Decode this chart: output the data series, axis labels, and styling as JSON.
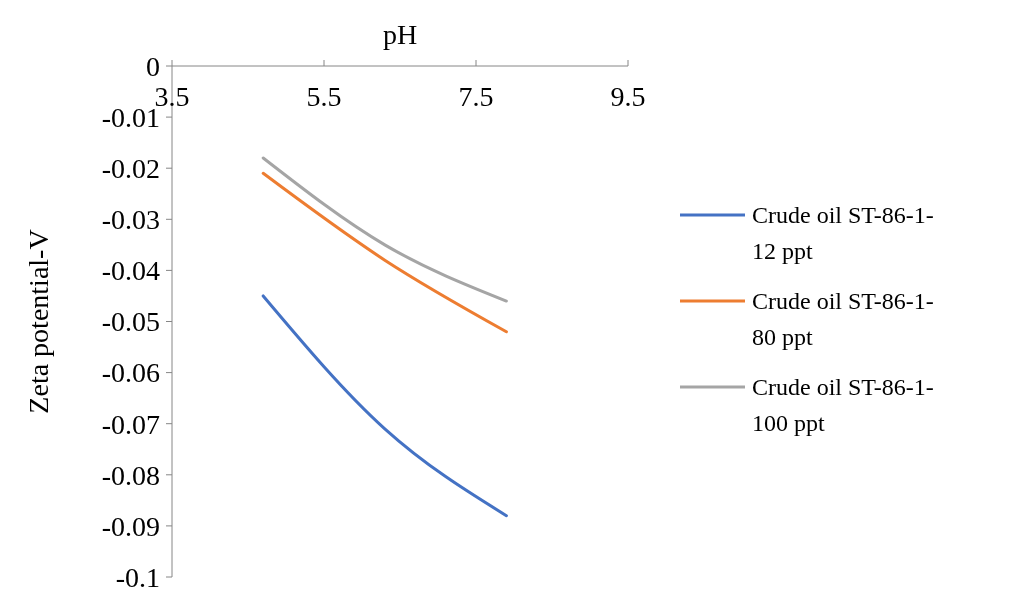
{
  "chart_data": {
    "type": "line",
    "xlabel": "pH",
    "ylabel": "Zeta potential-V",
    "xlim": [
      3.5,
      9.5
    ],
    "xticks": [
      3.5,
      5.5,
      7.5,
      9.5
    ],
    "ylim": [
      -0.1,
      0
    ],
    "yticks": [
      0,
      -0.01,
      -0.02,
      -0.03,
      -0.04,
      -0.05,
      -0.06,
      -0.07,
      -0.08,
      -0.09,
      -0.1
    ],
    "grid": false,
    "legend": "right",
    "marker": "none",
    "line_style": "solid",
    "series": [
      {
        "name": "Crude oil ST-86-1-12 ppt",
        "color": "#4472c4",
        "x": [
          4.7,
          6.3,
          7.9
        ],
        "values": [
          -0.045,
          -0.071,
          -0.088
        ]
      },
      {
        "name": "Crude oil ST-86-1-80 ppt",
        "color": "#ed7d31",
        "x": [
          4.7,
          6.3,
          7.9
        ],
        "values": [
          -0.021,
          -0.038,
          -0.052
        ]
      },
      {
        "name": "Crude oil ST-86-1-100 ppt",
        "color": "#a5a5a5",
        "x": [
          4.7,
          6.3,
          7.9
        ],
        "values": [
          -0.018,
          -0.035,
          -0.046
        ]
      }
    ]
  }
}
